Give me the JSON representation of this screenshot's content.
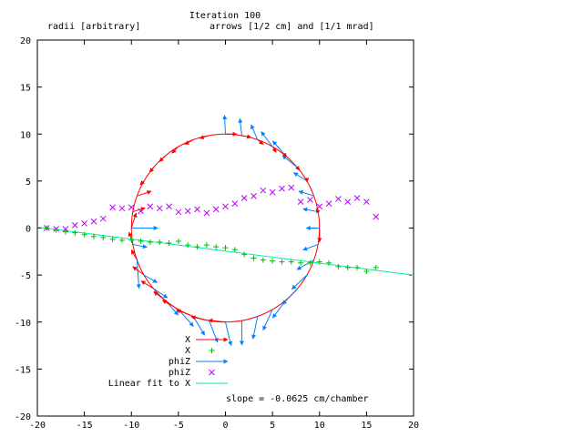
{
  "chart_data": {
    "type": "scatter",
    "title": "Iteration 100",
    "subtitle_left": "radii [arbitrary]",
    "subtitle_right": "arrows [1/2 cm] and [1/1 mrad]",
    "xlim": [
      -20,
      20
    ],
    "ylim": [
      -20,
      20
    ],
    "x_ticks": [
      -20,
      -15,
      -10,
      -5,
      0,
      5,
      10,
      15,
      20
    ],
    "y_ticks": [
      -20,
      -15,
      -10,
      -5,
      0,
      5,
      10,
      15,
      20
    ],
    "grid": false,
    "legend_position": "bottom-center",
    "annotation": "slope = -0.0625 cm/chamber",
    "colors": {
      "red": "#ff0000",
      "green": "#00c000",
      "blue": "#0080ff",
      "magenta": "#c000ff",
      "cyan": "#00eeaa"
    },
    "legend": [
      {
        "label": "X",
        "color": "#ff0000",
        "style": "arrow"
      },
      {
        "label": "X",
        "color": "#00c000",
        "style": "plus"
      },
      {
        "label": "phiZ",
        "color": "#0080ff",
        "style": "arrow"
      },
      {
        "label": "phiZ",
        "color": "#c000ff",
        "style": "cross"
      },
      {
        "label": "Linear fit to X",
        "color": "#00eeaa",
        "style": "line"
      }
    ],
    "circle": {
      "center": [
        0,
        0
      ],
      "radius": 10
    },
    "x_points": [
      {
        "x": -19,
        "y": 0.0
      },
      {
        "x": -18,
        "y": -0.2
      },
      {
        "x": -17,
        "y": -0.4
      },
      {
        "x": -16,
        "y": -0.5
      },
      {
        "x": -15,
        "y": -0.7
      },
      {
        "x": -14,
        "y": -0.9
      },
      {
        "x": -13,
        "y": -1.0
      },
      {
        "x": -12,
        "y": -1.2
      },
      {
        "x": -11,
        "y": -1.3
      },
      {
        "x": -10,
        "y": -1.3
      },
      {
        "x": -9,
        "y": -1.4
      },
      {
        "x": -8,
        "y": -1.5
      },
      {
        "x": -7,
        "y": -1.5
      },
      {
        "x": -6,
        "y": -1.6
      },
      {
        "x": -5,
        "y": -1.4
      },
      {
        "x": -4,
        "y": -1.8
      },
      {
        "x": -3,
        "y": -2.0
      },
      {
        "x": -2,
        "y": -1.8
      },
      {
        "x": -1,
        "y": -2.0
      },
      {
        "x": 0,
        "y": -2.1
      },
      {
        "x": 1,
        "y": -2.3
      },
      {
        "x": 2,
        "y": -2.8
      },
      {
        "x": 3,
        "y": -3.2
      },
      {
        "x": 4,
        "y": -3.4
      },
      {
        "x": 5,
        "y": -3.5
      },
      {
        "x": 6,
        "y": -3.6
      },
      {
        "x": 7,
        "y": -3.6
      },
      {
        "x": 8,
        "y": -3.7
      },
      {
        "x": 9,
        "y": -3.7
      },
      {
        "x": 10,
        "y": -3.6
      },
      {
        "x": 11,
        "y": -3.7
      },
      {
        "x": 12,
        "y": -4.1
      },
      {
        "x": 13,
        "y": -4.2
      },
      {
        "x": 14,
        "y": -4.2
      },
      {
        "x": 15,
        "y": -4.6
      },
      {
        "x": 16,
        "y": -4.2
      }
    ],
    "phiz_points": [
      {
        "x": -19,
        "y": 0.0
      },
      {
        "x": -18,
        "y": -0.1
      },
      {
        "x": -17,
        "y": -0.1
      },
      {
        "x": -16,
        "y": 0.3
      },
      {
        "x": -15,
        "y": 0.5
      },
      {
        "x": -14,
        "y": 0.7
      },
      {
        "x": -13,
        "y": 1.0
      },
      {
        "x": -12,
        "y": 2.2
      },
      {
        "x": -11,
        "y": 2.1
      },
      {
        "x": -10,
        "y": 2.2
      },
      {
        "x": -9,
        "y": 1.8
      },
      {
        "x": -8,
        "y": 2.3
      },
      {
        "x": -7,
        "y": 2.1
      },
      {
        "x": -6,
        "y": 2.3
      },
      {
        "x": -5,
        "y": 1.7
      },
      {
        "x": -4,
        "y": 1.8
      },
      {
        "x": -3,
        "y": 2.0
      },
      {
        "x": -2,
        "y": 1.6
      },
      {
        "x": -1,
        "y": 2.0
      },
      {
        "x": 0,
        "y": 2.3
      },
      {
        "x": 1,
        "y": 2.6
      },
      {
        "x": 2,
        "y": 3.2
      },
      {
        "x": 3,
        "y": 3.4
      },
      {
        "x": 4,
        "y": 4.0
      },
      {
        "x": 5,
        "y": 3.8
      },
      {
        "x": 6,
        "y": 4.2
      },
      {
        "x": 7,
        "y": 4.3
      },
      {
        "x": 8,
        "y": 2.8
      },
      {
        "x": 9,
        "y": 3.0
      },
      {
        "x": 10,
        "y": 2.3
      },
      {
        "x": 11,
        "y": 2.6
      },
      {
        "x": 12,
        "y": 3.1
      },
      {
        "x": 13,
        "y": 2.8
      },
      {
        "x": 14,
        "y": 3.2
      },
      {
        "x": 15,
        "y": 2.8
      },
      {
        "x": 16,
        "y": 1.2
      }
    ],
    "linear_fit": {
      "slope": -0.0625,
      "intercept": -0.05,
      "x_range": [
        -20,
        20
      ]
    },
    "x_arrows": [
      {
        "angle_deg": 90,
        "dx": 1.2,
        "dy": 0
      },
      {
        "angle_deg": 80,
        "dx": 1.0,
        "dy": -0.2
      },
      {
        "angle_deg": 70,
        "dx": 0.6,
        "dy": -0.5
      },
      {
        "angle_deg": 60,
        "dx": 0.4,
        "dy": -0.6
      },
      {
        "angle_deg": 50,
        "dx": 0.1,
        "dy": -0.1
      },
      {
        "angle_deg": 40,
        "dx": 0.2,
        "dy": -0.3
      },
      {
        "angle_deg": 30,
        "dx": 0.0,
        "dy": -0.1
      },
      {
        "angle_deg": 150,
        "dx": -0.4,
        "dy": -0.4
      },
      {
        "angle_deg": 140,
        "dx": -0.4,
        "dy": -0.5
      },
      {
        "angle_deg": 130,
        "dx": -0.6,
        "dy": -0.6
      },
      {
        "angle_deg": 120,
        "dx": -0.7,
        "dy": -0.7
      },
      {
        "angle_deg": 110,
        "dx": -0.9,
        "dy": -0.5
      },
      {
        "angle_deg": 100,
        "dx": -1.0,
        "dy": -0.3
      },
      {
        "angle_deg": 270,
        "dx": -1.8,
        "dy": 0.2
      },
      {
        "angle_deg": 260,
        "dx": -1.9,
        "dy": 0.4
      },
      {
        "angle_deg": 250,
        "dx": -1.8,
        "dy": 0.7
      },
      {
        "angle_deg": 240,
        "dx": -1.7,
        "dy": 1.0
      },
      {
        "angle_deg": 230,
        "dx": -1.2,
        "dy": 0.9
      },
      {
        "angle_deg": 220,
        "dx": -1.3,
        "dy": 0.8
      },
      {
        "angle_deg": 210,
        "dx": -1.2,
        "dy": 0.9
      },
      {
        "angle_deg": 200,
        "dx": -0.6,
        "dy": 1.1
      },
      {
        "angle_deg": 190,
        "dx": -0.4,
        "dy": 1.3
      },
      {
        "angle_deg": 180,
        "dx": 0.5,
        "dy": 1.6
      },
      {
        "angle_deg": 170,
        "dx": 1.3,
        "dy": 0.4
      },
      {
        "angle_deg": 160,
        "dx": 1.5,
        "dy": 0.5
      },
      {
        "angle_deg": 10,
        "dx": -0.2,
        "dy": 0.3
      },
      {
        "angle_deg": 0,
        "dx": 0.0,
        "dy": -1.5
      }
    ],
    "phiz_arrows": [
      {
        "angle_deg": 90,
        "dx": -0.1,
        "dy": 2.0
      },
      {
        "angle_deg": 80,
        "dx": -0.2,
        "dy": 1.8
      },
      {
        "angle_deg": 70,
        "dx": -0.7,
        "dy": 1.6
      },
      {
        "angle_deg": 60,
        "dx": -1.2,
        "dy": 1.6
      },
      {
        "angle_deg": 50,
        "dx": -1.4,
        "dy": 1.6
      },
      {
        "angle_deg": 40,
        "dx": -1.6,
        "dy": 1.3
      },
      {
        "angle_deg": 30,
        "dx": -1.4,
        "dy": 0.9
      },
      {
        "angle_deg": 20,
        "dx": -1.6,
        "dy": 0.5
      },
      {
        "angle_deg": 10,
        "dx": -1.6,
        "dy": 0.3
      },
      {
        "angle_deg": 0,
        "dx": -1.4,
        "dy": 0.0
      },
      {
        "angle_deg": 350,
        "dx": -1.6,
        "dy": -0.6
      },
      {
        "angle_deg": 340,
        "dx": -1.8,
        "dy": -1.0
      },
      {
        "angle_deg": 330,
        "dx": -1.6,
        "dy": -1.5
      },
      {
        "angle_deg": 320,
        "dx": -1.6,
        "dy": -1.7
      },
      {
        "angle_deg": 310,
        "dx": -1.4,
        "dy": -1.9
      },
      {
        "angle_deg": 300,
        "dx": -1.0,
        "dy": -2.2
      },
      {
        "angle_deg": 290,
        "dx": -0.5,
        "dy": -2.4
      },
      {
        "angle_deg": 280,
        "dx": 0.0,
        "dy": -2.6
      },
      {
        "angle_deg": 270,
        "dx": 0.6,
        "dy": -2.5
      },
      {
        "angle_deg": 260,
        "dx": 0.9,
        "dy": -2.3
      },
      {
        "angle_deg": 250,
        "dx": 1.2,
        "dy": -2.0
      },
      {
        "angle_deg": 240,
        "dx": 1.6,
        "dy": -1.8
      },
      {
        "angle_deg": 230,
        "dx": 1.4,
        "dy": -1.6
      },
      {
        "angle_deg": 220,
        "dx": 1.5,
        "dy": -1.0
      },
      {
        "angle_deg": 210,
        "dx": 1.4,
        "dy": -0.8
      },
      {
        "angle_deg": 200,
        "dx": 0.2,
        "dy": -3.0
      },
      {
        "angle_deg": 190,
        "dx": 1.5,
        "dy": -0.3
      },
      {
        "angle_deg": 180,
        "dx": 2.8,
        "dy": 0.0
      }
    ]
  }
}
